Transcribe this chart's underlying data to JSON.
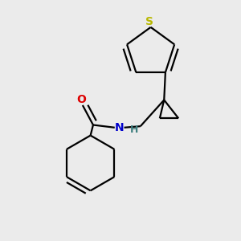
{
  "background_color": "#ebebeb",
  "bond_color": "#000000",
  "sulfur_color": "#b8b800",
  "oxygen_color": "#dd0000",
  "nitrogen_color": "#0000cc",
  "hydrogen_color": "#408080",
  "bond_width": 1.6,
  "dpi": 100,
  "figsize": [
    3.0,
    3.0
  ],
  "xlim": [
    0.05,
    0.85
  ],
  "ylim": [
    0.05,
    0.95
  ]
}
